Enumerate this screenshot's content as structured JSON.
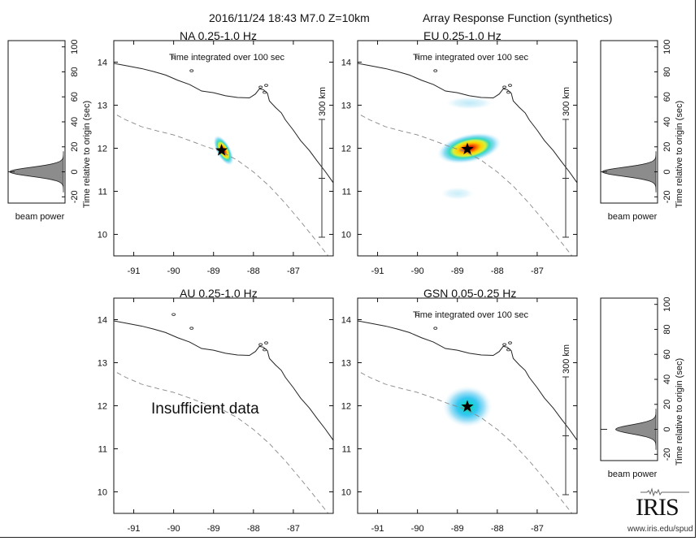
{
  "header": {
    "event": "2016/11/24 18:43  M7.0  Z=10km",
    "figure_title": "Array Response Function (synthetics)"
  },
  "colors": {
    "coast": "#222222",
    "trench": "#888888",
    "beam_fill": "#8c8c8c",
    "epicenter": "#000000"
  },
  "chart_data": [
    {
      "type": "heatmap",
      "panel": "NA",
      "title": "NA  0.25-1.0 Hz",
      "subtitle": "Time integrated over 100 sec",
      "xlim": [
        -91.5,
        -86.0
      ],
      "ylim": [
        9.5,
        14.5
      ],
      "xticks": [
        -91,
        -90,
        -89,
        -88,
        -87
      ],
      "yticks": [
        10,
        11,
        12,
        13,
        14
      ],
      "epicenter": {
        "lon": -88.8,
        "lat": 11.95
      },
      "scale_label": "300 km",
      "show_scale": true,
      "beam": {
        "lon": -88.75,
        "lat": 11.95,
        "a_deg": 0.42,
        "b_deg": 0.18,
        "rot": 62,
        "peak": 1.0,
        "side": "left"
      },
      "lobes": [],
      "message": ""
    },
    {
      "type": "heatmap",
      "panel": "EU",
      "title": "EU  0.25-1.0 Hz",
      "subtitle": "Time integrated over 100 sec",
      "xlim": [
        -91.5,
        -86.0
      ],
      "ylim": [
        9.5,
        14.5
      ],
      "xticks": [
        -91,
        -90,
        -89,
        -88,
        -87
      ],
      "yticks": [
        10,
        11,
        12,
        13,
        14
      ],
      "epicenter": {
        "lon": -88.75,
        "lat": 11.98
      },
      "scale_label": "300 km",
      "show_scale": true,
      "beam": {
        "lon": -88.7,
        "lat": 12.0,
        "a_deg": 0.82,
        "b_deg": 0.36,
        "rot": -12,
        "peak": 1.0,
        "side": "right"
      },
      "lobes": [
        {
          "lon": -88.7,
          "lat": 13.05,
          "a_deg": 0.6,
          "b_deg": 0.16,
          "peak": 0.18
        },
        {
          "lon": -89.0,
          "lat": 10.95,
          "a_deg": 0.42,
          "b_deg": 0.16,
          "peak": 0.15
        }
      ],
      "message": ""
    },
    {
      "type": "heatmap",
      "panel": "AU",
      "title": "AU  0.25-1.0 Hz",
      "subtitle": "",
      "xlim": [
        -91.5,
        -86.0
      ],
      "ylim": [
        9.5,
        14.5
      ],
      "xticks": [
        -91,
        -90,
        -89,
        -88,
        -87
      ],
      "yticks": [
        10,
        11,
        12,
        13,
        14
      ],
      "epicenter": null,
      "scale_label": "",
      "show_scale": false,
      "beam": null,
      "lobes": [],
      "message": "Insufficient data"
    },
    {
      "type": "heatmap",
      "panel": "GSN",
      "title": "GSN  0.05-0.25 Hz",
      "subtitle": "Time integrated over 100 sec",
      "xlim": [
        -91.5,
        -86.0
      ],
      "ylim": [
        9.5,
        14.5
      ],
      "xticks": [
        -91,
        -90,
        -89,
        -88,
        -87
      ],
      "yticks": [
        10,
        11,
        12,
        13,
        14
      ],
      "epicenter": {
        "lon": -88.75,
        "lat": 11.98
      },
      "scale_label": "300 km",
      "show_scale": true,
      "beam": {
        "lon": -88.75,
        "lat": 11.98,
        "a_deg": 0.62,
        "b_deg": 0.52,
        "rot": 0,
        "peak": 0.75,
        "side": "right"
      },
      "lobes": [],
      "message": ""
    }
  ],
  "beam_power_plot": {
    "ylabel": "Time relative to origin (sec)",
    "xlabel": "beam power",
    "ylim": [
      -25,
      105
    ],
    "yticks": [
      -20,
      0,
      20,
      40,
      60,
      80,
      100
    ],
    "peak_time": 0
  },
  "logo": {
    "text": "IRIS",
    "url": "www.iris.edu/spud"
  }
}
